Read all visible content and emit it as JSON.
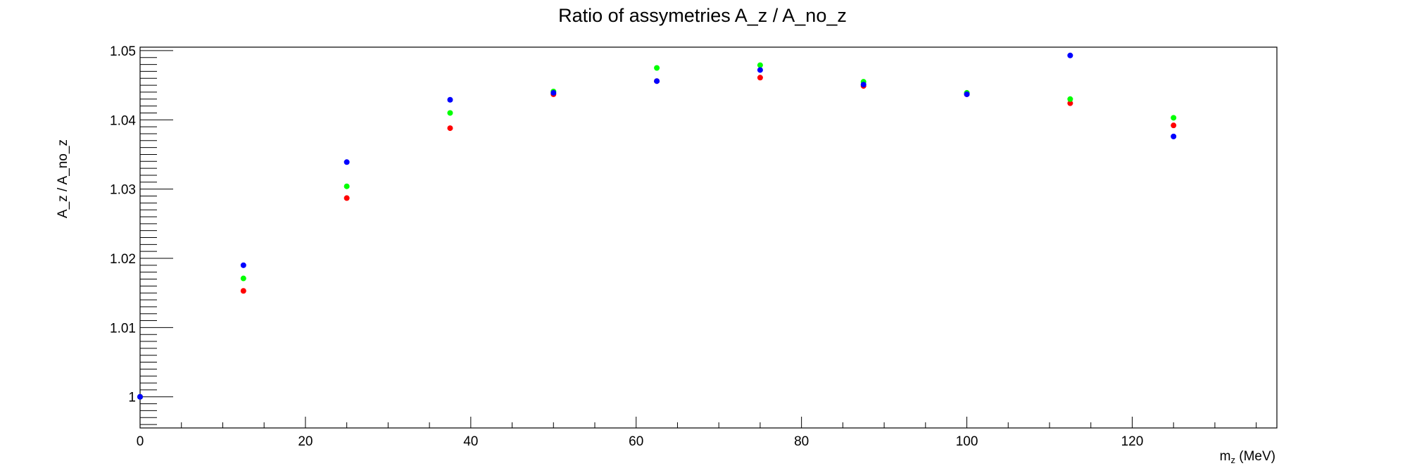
{
  "chart_data": {
    "type": "scatter",
    "title": "Ratio of assymetries A_z / A_no_z",
    "xlabel_main": "m",
    "xlabel_sub": "z",
    "xlabel_unit": " (MeV)",
    "ylabel": "A_z / A_no_z",
    "xlim": [
      0,
      137.5
    ],
    "ylim": [
      0.9955,
      1.0505
    ],
    "x_ticks": [
      0,
      20,
      40,
      60,
      80,
      100,
      120
    ],
    "x_tick_labels": [
      "0",
      "20",
      "40",
      "60",
      "80",
      "100",
      "120"
    ],
    "y_ticks": [
      1.0,
      1.01,
      1.02,
      1.03,
      1.04,
      1.05
    ],
    "y_tick_labels": [
      "1",
      "1.01",
      "1.02",
      "1.03",
      "1.04",
      "1.05"
    ],
    "grid": false,
    "series": [
      {
        "color": "#ff0000",
        "x": [
          0,
          12.5,
          25,
          37.5,
          50,
          62.5,
          75,
          87.5,
          100,
          112.5,
          125
        ],
        "y": [
          1.0,
          1.0153,
          1.0287,
          1.0388,
          1.0437,
          1.0456,
          1.0461,
          1.0449,
          1.0437,
          1.0424,
          1.0392
        ]
      },
      {
        "color": "#00ff00",
        "x": [
          0,
          12.5,
          25,
          37.5,
          50,
          62.5,
          75,
          87.5,
          100,
          112.5,
          125
        ],
        "y": [
          1.0,
          1.0171,
          1.0304,
          1.041,
          1.0441,
          1.0475,
          1.0479,
          1.0455,
          1.0439,
          1.043,
          1.0403
        ]
      },
      {
        "color": "#0000ff",
        "x": [
          0,
          12.5,
          25,
          37.5,
          50,
          62.5,
          75,
          87.5,
          100,
          112.5,
          125
        ],
        "y": [
          1.0,
          1.019,
          1.0339,
          1.0429,
          1.0439,
          1.0456,
          1.0472,
          1.0451,
          1.0437,
          1.0493,
          1.0376
        ]
      }
    ]
  }
}
